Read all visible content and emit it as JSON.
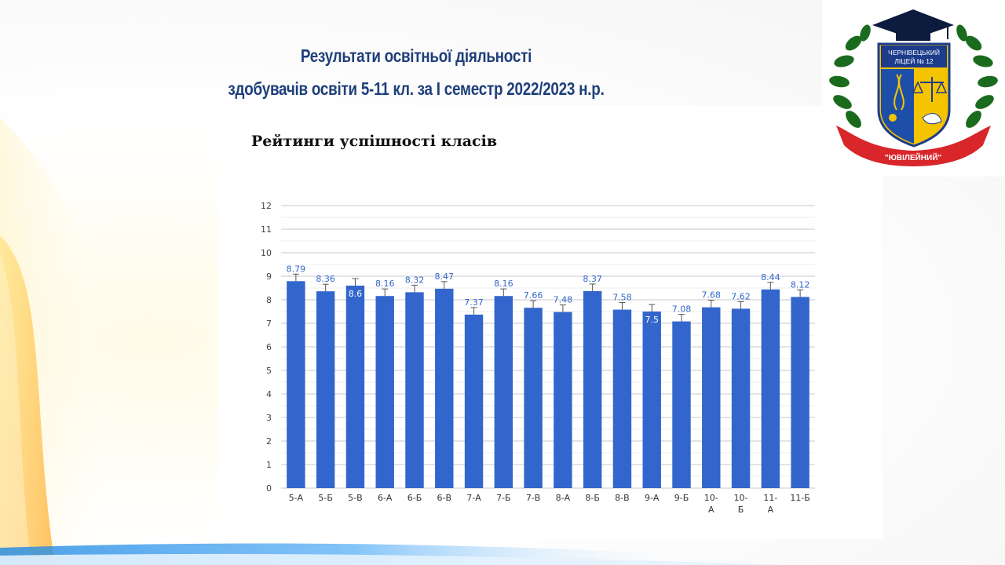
{
  "slide": {
    "title_line1": "Результати освітньої діяльності",
    "title_line2": "здобувачів освіти 5-11 кл. за І семестр 2022/2023 н.р."
  },
  "logo": {
    "line1": "ЧЕРНІВЕЦЬКИЙ",
    "line2": "ЛІЦЕЙ № 12",
    "ribbon": "\"ЮВІЛЕЙНИЙ\""
  },
  "colors": {
    "bar": "#3366cc",
    "label": "#3366cc",
    "title": "#1f3f7a",
    "ribbon": "#d8262b",
    "laurel": "#1b6b1f"
  },
  "chart_data": {
    "type": "bar",
    "title": "Рейтинги успішності класів",
    "xlabel": "",
    "ylabel": "",
    "ylim": [
      0,
      12
    ],
    "yticks": [
      0,
      1,
      2,
      3,
      4,
      5,
      6,
      7,
      8,
      9,
      10,
      11,
      12
    ],
    "grid": true,
    "error_bars": true,
    "categories": [
      "5-А",
      "5-Б",
      "5-В",
      "6-А",
      "6-Б",
      "6-В",
      "7-А",
      "7-Б",
      "7-В",
      "8-А",
      "8-Б",
      "8-В",
      "9-А",
      "9-Б",
      "10-А",
      "10-Б",
      "11-А",
      "11-Б"
    ],
    "values": [
      8.79,
      8.36,
      8.6,
      8.16,
      8.32,
      8.47,
      7.37,
      8.16,
      7.66,
      7.48,
      8.37,
      7.58,
      7.5,
      7.08,
      7.68,
      7.62,
      8.44,
      8.12
    ],
    "value_labels": [
      "8.79",
      "8.36",
      "8.6",
      "8.16",
      "8.32",
      "8.47",
      "7.37",
      "8.16",
      "7.66",
      "7.48",
      "8.37",
      "7.58",
      "7.5",
      "7.08",
      "7.68",
      "7.62",
      "8.44",
      "8.12"
    ]
  }
}
